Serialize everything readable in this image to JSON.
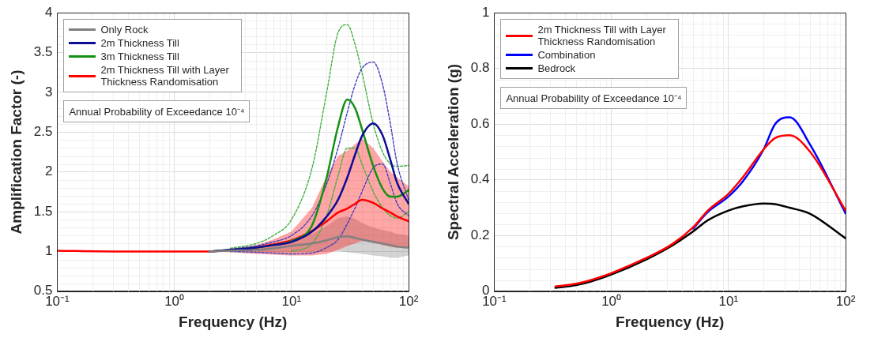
{
  "chart_data": [
    {
      "type": "line",
      "xlabel": "Frequency (Hz)",
      "ylabel": "Amplification Factor (-)",
      "log": "x",
      "grid": true,
      "legend": "top left",
      "marker": "none",
      "xlim": [
        0.1,
        100
      ],
      "xticks": [
        {
          "value": 0.1,
          "label": "10⁻¹"
        },
        {
          "value": 1,
          "label": "10⁰"
        },
        {
          "value": 10,
          "label": "10¹"
        },
        {
          "value": 100,
          "label": "10²"
        }
      ],
      "ylim": [
        0.5,
        4
      ],
      "yticks": [
        0.5,
        1,
        1.5,
        2,
        2.5,
        3,
        3.5,
        4
      ],
      "annotations": [
        "Annual Probability of Exceedance 10⁻⁴"
      ],
      "x": [
        0.1,
        0.3,
        1,
        2,
        3,
        5,
        7,
        10,
        15,
        20,
        25,
        30,
        35,
        40,
        50,
        60,
        70,
        80,
        100
      ],
      "series": [
        {
          "name": "Only Rock",
          "color": "#808080",
          "values": [
            null,
            null,
            null,
            1.0,
            1.01,
            1.02,
            1.04,
            1.07,
            1.1,
            1.14,
            1.18,
            1.19,
            1.17,
            1.15,
            1.12,
            1.1,
            1.08,
            1.06,
            1.05
          ],
          "lower": [
            1.01,
            1.0,
            1.0,
            1.0,
            1.0,
            1.0,
            0.99,
            0.99,
            0.99,
            1.0,
            1.01,
            0.99,
            0.98,
            0.97,
            0.95,
            0.94,
            0.92,
            0.92,
            0.95
          ],
          "upper": [
            1.01,
            1.0,
            1.0,
            1.0,
            1.02,
            1.04,
            1.09,
            1.15,
            1.22,
            1.32,
            1.42,
            1.44,
            1.41,
            1.36,
            1.3,
            1.27,
            1.25,
            1.22,
            1.2
          ]
        },
        {
          "name": "2m Thickness Till",
          "color": "#0c0c96",
          "values": [
            null,
            null,
            null,
            1.0,
            1.02,
            1.05,
            1.08,
            1.12,
            1.25,
            1.44,
            1.65,
            1.93,
            2.22,
            2.45,
            2.61,
            2.46,
            2.15,
            1.86,
            1.6
          ]
        },
        {
          "name": "3m Thickness Till",
          "color": "#139113",
          "values": [
            null,
            null,
            null,
            1.0,
            1.02,
            1.05,
            1.08,
            1.13,
            1.33,
            1.93,
            2.57,
            2.91,
            2.8,
            2.54,
            2.07,
            1.79,
            1.69,
            1.69,
            1.77
          ]
        },
        {
          "name": "2m Thickness Till with Layer Thickness Randomisation",
          "color": "#ff0000",
          "values": [
            1.01,
            1.0,
            1.0,
            1.0,
            1.02,
            1.05,
            1.09,
            1.14,
            1.26,
            1.38,
            1.49,
            1.54,
            1.6,
            1.65,
            1.61,
            1.54,
            1.49,
            1.44,
            1.38
          ],
          "lower": [
            1.01,
            1.0,
            1.0,
            1.0,
            0.99,
            0.97,
            0.96,
            0.95,
            0.95,
            0.97,
            1.02,
            1.07,
            1.1,
            1.13,
            1.11,
            1.08,
            1.06,
            1.05,
            1.04
          ],
          "upper": [
            1.01,
            1.0,
            1.0,
            1.01,
            1.03,
            1.08,
            1.15,
            1.25,
            1.55,
            1.95,
            2.2,
            2.27,
            2.35,
            2.42,
            2.3,
            2.13,
            2.0,
            1.93,
            1.82
          ]
        },
        {
          "color": "#4040c0",
          "line_style": "dashed",
          "values": [
            null,
            null,
            null,
            null,
            1.03,
            1.07,
            1.12,
            1.2,
            1.45,
            1.85,
            2.3,
            2.75,
            3.1,
            3.3,
            3.38,
            3.1,
            2.6,
            2.1,
            1.65
          ]
        },
        {
          "color": "#4040c0",
          "line_style": "dashed",
          "values": [
            null,
            null,
            null,
            null,
            1.0,
            0.99,
            0.98,
            0.97,
            0.98,
            1.05,
            1.15,
            1.35,
            1.55,
            1.75,
            2.05,
            2.1,
            1.85,
            1.6,
            1.45
          ]
        },
        {
          "color": "#40b040",
          "line_style": "dashed",
          "values": [
            null,
            null,
            null,
            null,
            1.04,
            1.1,
            1.2,
            1.4,
            2.05,
            3.0,
            3.75,
            3.85,
            3.6,
            3.25,
            2.6,
            2.25,
            2.1,
            2.07,
            2.08
          ]
        },
        {
          "color": "#40b040",
          "line_style": "dashed",
          "values": [
            null,
            null,
            null,
            null,
            null,
            null,
            null,
            1.0,
            1.1,
            1.45,
            1.95,
            2.3,
            2.3,
            2.1,
            1.75,
            1.55,
            1.45,
            1.42,
            1.5
          ]
        }
      ]
    },
    {
      "type": "line",
      "xlabel": "Frequency (Hz)",
      "ylabel": "Spectral Acceleration (g)",
      "log": "x",
      "grid": true,
      "legend": "top left",
      "marker": "none",
      "xlim": [
        0.1,
        100
      ],
      "xticks": [
        {
          "value": 0.1,
          "label": "10⁻¹"
        },
        {
          "value": 1,
          "label": "10⁰"
        },
        {
          "value": 10,
          "label": "10¹"
        },
        {
          "value": 100,
          "label": "10²"
        }
      ],
      "ylim": [
        0,
        1
      ],
      "yticks": [
        0,
        0.2,
        0.4,
        0.6,
        0.8,
        1
      ],
      "annotations": [
        "Annual Probability of Exceedance 10⁻⁴"
      ],
      "x": [
        0.333,
        0.5,
        0.667,
        1,
        2,
        3.33,
        5,
        6.67,
        10,
        13.3,
        20,
        25,
        33.3,
        50,
        100
      ],
      "series": [
        {
          "name": "2m Thickness Till with Layer Thickness Randomisation",
          "color": "#ff0000",
          "values": [
            0.017,
            0.027,
            0.04,
            0.065,
            0.12,
            0.17,
            0.23,
            0.29,
            0.35,
            0.41,
            0.51,
            0.55,
            0.56,
            0.5,
            0.29
          ]
        },
        {
          "name": "Combination",
          "color": "#0000ff",
          "values": [
            null,
            null,
            null,
            null,
            null,
            null,
            0.225,
            0.285,
            0.34,
            0.395,
            0.51,
            0.6,
            0.625,
            0.525,
            0.28
          ]
        },
        {
          "name": "Bedrock",
          "color": "#000000",
          "values": [
            0.012,
            0.022,
            0.035,
            0.06,
            0.115,
            0.165,
            0.215,
            0.255,
            0.29,
            0.305,
            0.315,
            0.313,
            0.3,
            0.278,
            0.19
          ]
        }
      ]
    }
  ]
}
